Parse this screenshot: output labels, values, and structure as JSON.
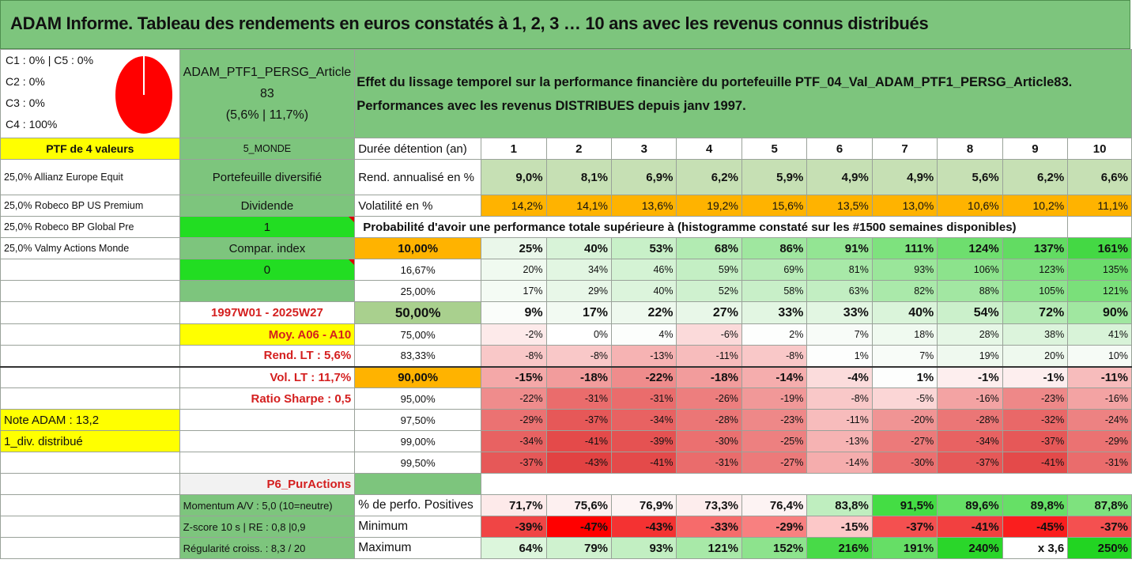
{
  "title": "ADAM Informe. Tableau des rendements en euros constatés à 1, 2, 3 … 10 ans avec les revenus connus distribués",
  "classes": [
    "C1 : 0% | C5 : 0%",
    "C2 : 0%",
    "C3 : 0%",
    "C4 : 100%"
  ],
  "pie": {
    "color": "#ff0000",
    "shares": [
      0,
      0,
      0,
      1,
      0
    ]
  },
  "portfolio": {
    "name_line1": "ADAM_PTF1_PERSG_Article",
    "name_line2": "83",
    "stats": "(5,6% | 11,7%)"
  },
  "description": "Effet du lissage temporel sur la performance financière du portefeuille PTF_04_Val_ADAM_PTF1_PERSG_Article83. Performances avec les revenus DISTRIBUES depuis janv 1997.",
  "left": {
    "ptf_label": "PTF de 4 valeurs",
    "holdings": [
      "25,0% Allianz Europe Equit",
      "25,0% Robeco BP US Premium",
      "25,0% Robeco BP Global Pre",
      "25,0% Valmy Actions Monde"
    ]
  },
  "mid": {
    "monde": "5_MONDE",
    "diversifie": "Portefeuille diversifié",
    "dividende": "Dividende",
    "one": "1",
    "compar": "Compar. index",
    "zero": "0",
    "period": "1997W01 - 2025W27",
    "moy": "Moy. A06 - A10",
    "rend_lt": "Rend. LT : 5,6%",
    "vol_lt": "Vol. LT : 11,7%",
    "sharpe": "Ratio Sharpe : 0,5",
    "note": "Note ADAM : 13,2",
    "div": "1_div. distribué",
    "p6": "P6_PurActions",
    "momentum": "Momentum A/V : 5,0 (10=neutre)",
    "zscore": "Z-score 10 s | RE : 0,8 |0,9",
    "regul": "Régularité croiss. : 8,3 / 20"
  },
  "grid": {
    "duration_label": "Durée détention (an)",
    "years": [
      "1",
      "2",
      "3",
      "4",
      "5",
      "6",
      "7",
      "8",
      "9",
      "10"
    ],
    "rend_label": "Rend. annualisé en %",
    "rend": [
      "9,0%",
      "8,1%",
      "6,9%",
      "6,2%",
      "5,9%",
      "4,9%",
      "4,9%",
      "5,6%",
      "6,2%",
      "6,6%"
    ],
    "vol_label": "Volatilité en %",
    "vol": [
      "14,2%",
      "14,1%",
      "13,6%",
      "19,2%",
      "15,6%",
      "13,5%",
      "13,0%",
      "10,6%",
      "10,2%",
      "11,1%"
    ],
    "proba_label": "Probabilité d'avoir une performance totale supérieure à (histogramme constaté sur les #1500 semaines disponibles)",
    "quantiles": [
      {
        "p": "10,00%",
        "bold": true,
        "v": [
          "25%",
          "40%",
          "53%",
          "68%",
          "86%",
          "91%",
          "111%",
          "124%",
          "137%",
          "161%"
        ],
        "bg": [
          "#eaf7ea",
          "#d8f3d8",
          "#c8f0c8",
          "#b2ebb2",
          "#9fe79f",
          "#93e593",
          "#7ee27e",
          "#6ede6e",
          "#62dc62",
          "#44d844"
        ]
      },
      {
        "p": "16,67%",
        "bold": false,
        "v": [
          "20%",
          "34%",
          "46%",
          "59%",
          "69%",
          "81%",
          "93%",
          "106%",
          "123%",
          "135%"
        ],
        "bg": [
          "#f0faf0",
          "#e2f6e2",
          "#d4f3d4",
          "#c4efc4",
          "#b8ecb8",
          "#a8e9a8",
          "#9ae69a",
          "#8ce38c",
          "#7ee07e",
          "#6cdd6c"
        ]
      },
      {
        "p": "25,00%",
        "bold": false,
        "v": [
          "17%",
          "29%",
          "40%",
          "52%",
          "58%",
          "63%",
          "82%",
          "88%",
          "105%",
          "121%"
        ],
        "bg": [
          "#f4fbf4",
          "#e8f7e8",
          "#dcf4dc",
          "#cff1cf",
          "#c8efc8",
          "#c2eec2",
          "#aae9aa",
          "#a2e7a2",
          "#8de38d",
          "#7ae07a"
        ]
      },
      {
        "p": "50,00%",
        "bold": true,
        "v": [
          "9%",
          "17%",
          "22%",
          "27%",
          "33%",
          "33%",
          "40%",
          "54%",
          "72%",
          "90%"
        ],
        "bg": [
          "#fafdfa",
          "#f2faf2",
          "#eef9ee",
          "#e8f7e8",
          "#e2f6e2",
          "#e2f6e2",
          "#daf4da",
          "#cbf0cb",
          "#b6ebb6",
          "#a0e7a0"
        ]
      },
      {
        "p": "75,00%",
        "bold": false,
        "v": [
          "-2%",
          "0%",
          "4%",
          "-6%",
          "2%",
          "7%",
          "18%",
          "28%",
          "38%",
          "41%"
        ],
        "bg": [
          "#fdeaea",
          "#ffffff",
          "#fcfefc",
          "#fbdada",
          "#fdfefd",
          "#f8fcf8",
          "#f0faf0",
          "#e6f7e6",
          "#dcf4dc",
          "#d8f3d8"
        ]
      },
      {
        "p": "83,33%",
        "bold": false,
        "v": [
          "-8%",
          "-8%",
          "-13%",
          "-11%",
          "-8%",
          "1%",
          "7%",
          "19%",
          "20%",
          "10%"
        ],
        "bg": [
          "#f9c8c8",
          "#f9c8c8",
          "#f6b3b3",
          "#f7bcbc",
          "#f9c8c8",
          "#fdfefd",
          "#f8fcf8",
          "#eff9ef",
          "#eef9ee",
          "#f6fbf6"
        ]
      },
      {
        "p": "90,00%",
        "bold": true,
        "v": [
          "-15%",
          "-18%",
          "-22%",
          "-18%",
          "-14%",
          "-4%",
          "1%",
          "-1%",
          "-1%",
          "-11%"
        ],
        "bg": [
          "#f4a8a8",
          "#f29c9c",
          "#ef8c8c",
          "#f29c9c",
          "#f5adad",
          "#fbdcdc",
          "#fdfefd",
          "#fdeeee",
          "#fdeeee",
          "#f7bcbc"
        ]
      },
      {
        "p": "95,00%",
        "bold": false,
        "v": [
          "-22%",
          "-31%",
          "-31%",
          "-26%",
          "-19%",
          "-8%",
          "-5%",
          "-16%",
          "-23%",
          "-16%"
        ],
        "bg": [
          "#ef8c8c",
          "#ea6c6c",
          "#ea6c6c",
          "#ed7e7e",
          "#f19898",
          "#f9c8c8",
          "#fbd6d6",
          "#f3a3a3",
          "#ee8888",
          "#f3a3a3"
        ]
      },
      {
        "p": "97,50%",
        "bold": false,
        "v": [
          "-29%",
          "-37%",
          "-34%",
          "-28%",
          "-23%",
          "-11%",
          "-20%",
          "-28%",
          "-32%",
          "-24%"
        ],
        "bg": [
          "#eb7272",
          "#e65858",
          "#e86262",
          "#eb7676",
          "#ee8888",
          "#f7bcbc",
          "#f09494",
          "#eb7676",
          "#e96868",
          "#ed8282"
        ]
      },
      {
        "p": "99,00%",
        "bold": false,
        "v": [
          "-34%",
          "-41%",
          "-39%",
          "-30%",
          "-25%",
          "-13%",
          "-27%",
          "-34%",
          "-37%",
          "-29%"
        ],
        "bg": [
          "#e86262",
          "#e44a4a",
          "#e55252",
          "#eb7070",
          "#ed8080",
          "#f6b3b3",
          "#ec7a7a",
          "#e86262",
          "#e65858",
          "#eb7272"
        ]
      },
      {
        "p": "99,50%",
        "bold": false,
        "v": [
          "-37%",
          "-43%",
          "-41%",
          "-31%",
          "-27%",
          "-14%",
          "-30%",
          "-37%",
          "-41%",
          "-31%"
        ],
        "bg": [
          "#e65858",
          "#e24242",
          "#e44a4a",
          "#ea6c6c",
          "#ec7a7a",
          "#f5adad",
          "#eb7070",
          "#e65858",
          "#e44a4a",
          "#ea6c6c"
        ]
      }
    ],
    "pos_label": "% de perfo. Positives",
    "pos": [
      "71,7%",
      "75,6%",
      "76,9%",
      "73,3%",
      "76,4%",
      "83,8%",
      "91,5%",
      "89,6%",
      "89,8%",
      "87,8%"
    ],
    "pos_bg": [
      "#fdeaea",
      "#fdf0f0",
      "#fdf4f4",
      "#fdeded",
      "#fdf3f3",
      "#bfeebf",
      "#44dd44",
      "#66e066",
      "#66e066",
      "#7ee27e"
    ],
    "min_label": "Minimum",
    "min": [
      "-39%",
      "-47%",
      "-43%",
      "-33%",
      "-29%",
      "-15%",
      "-37%",
      "-41%",
      "-45%",
      "-37%"
    ],
    "min_bg": [
      "#f04545",
      "#ff0000",
      "#f43232",
      "#f66b6b",
      "#f88080",
      "#fcc8c8",
      "#f45050",
      "#f24040",
      "#fa1e1e",
      "#f45050"
    ],
    "max_label": "Maximum",
    "max": [
      "64%",
      "79%",
      "93%",
      "121%",
      "152%",
      "216%",
      "191%",
      "240%",
      "x 3,6",
      "250%"
    ],
    "max_bg": [
      "#dcf6dc",
      "#cff2cf",
      "#c2efc2",
      "#a8e9a8",
      "#8de38d",
      "#48da48",
      "#66de66",
      "#2ad62a",
      "#ffffff",
      "#22d422"
    ]
  },
  "colors": {
    "green": "#7dc57d",
    "yellow": "#ffff00",
    "orange": "#ffb300",
    "lime": "#22dd22",
    "label_red": "#d41f1f"
  }
}
